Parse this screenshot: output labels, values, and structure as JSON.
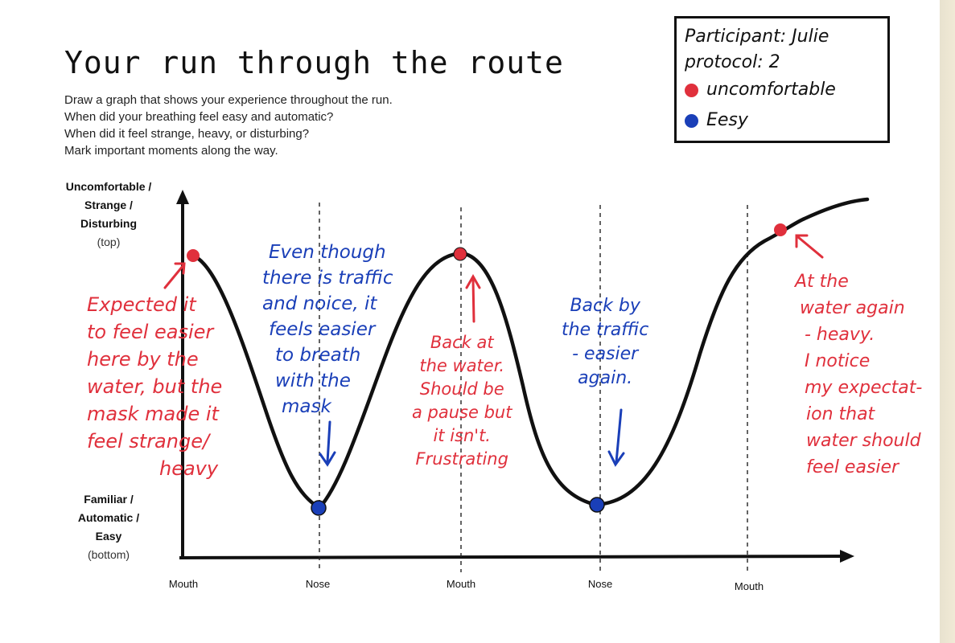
{
  "title": "Your run through the route",
  "instructions": [
    "Draw a graph that shows your experience throughout the run.",
    "When did your breathing feel easy and automatic?",
    "When did it feel strange, heavy, or disturbing?",
    "Mark important moments along the way."
  ],
  "y_axis": {
    "top_label": [
      "Uncomfortable /",
      "Strange /",
      "Disturbing"
    ],
    "top_sub": "(top)",
    "bottom_label": [
      "Familiar /",
      "Automatic /",
      "Easy"
    ],
    "bottom_sub": "(bottom)"
  },
  "x_ticks": [
    "Mouth",
    "Nose",
    "Mouth",
    "Nose",
    "Mouth"
  ],
  "legend": {
    "participant": "Participant: Julie",
    "protocol": "protocol: 2",
    "items": [
      {
        "label": "uncomfortable",
        "color": "#e0303c"
      },
      {
        "label": "Eesy",
        "color": "#1a3fb8"
      }
    ]
  },
  "colors": {
    "red": "#e0303c",
    "blue": "#1a3fb8",
    "ink": "#111111"
  },
  "annotations": [
    {
      "color": "red",
      "lines": [
        "Expected it",
        "to feel easier",
        "here by the",
        "water, but the",
        "mask made it",
        "feel strange/",
        "heavy"
      ]
    },
    {
      "color": "blue",
      "lines": [
        "Even though",
        "there is traffic",
        "and noice, it",
        "feels easier",
        "to breath",
        "with the",
        "mask"
      ]
    },
    {
      "color": "red",
      "lines": [
        "Back at",
        "the water.",
        "Should be",
        "a pause but",
        "it isn't.",
        "Frustrating"
      ]
    },
    {
      "color": "blue",
      "lines": [
        "Back by",
        "the traffic",
        "- easier",
        "again."
      ]
    },
    {
      "color": "red",
      "lines": [
        "At the",
        "water again",
        "- heavy.",
        "I notice",
        "my expectat-",
        "ion that",
        "water should",
        "feel easier"
      ]
    }
  ]
}
